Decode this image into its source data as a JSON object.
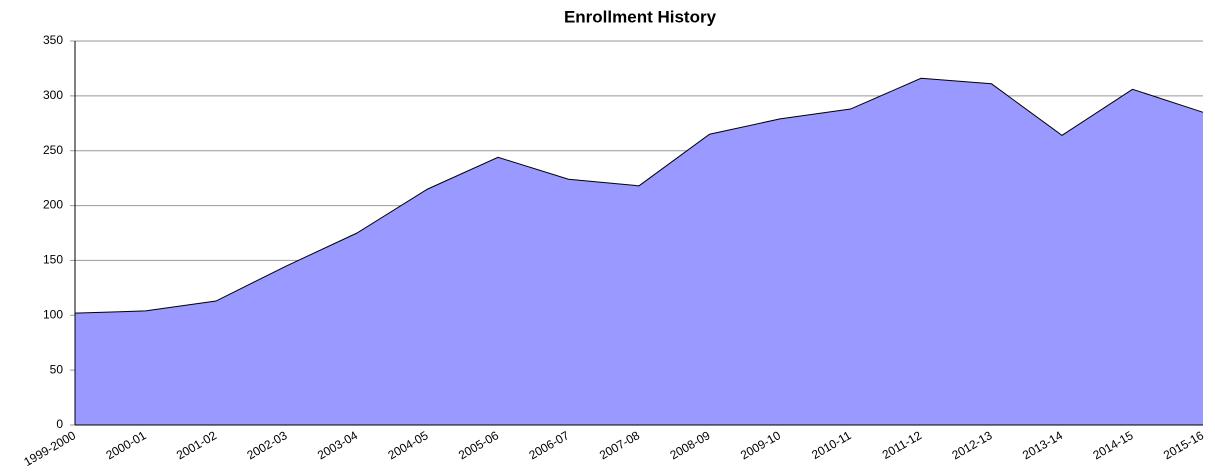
{
  "chart_data": {
    "type": "area",
    "title": "Enrollment History",
    "categories": [
      "1999-2000",
      "2000-01",
      "2001-02",
      "2002-03",
      "2003-04",
      "2004-05",
      "2005-06",
      "2006-07",
      "2007-08",
      "2008-09",
      "2009-10",
      "2010-11",
      "2011-12",
      "2012-13",
      "2013-14",
      "2014-15",
      "2015-16"
    ],
    "values": [
      102,
      104,
      113,
      145,
      175,
      215,
      244,
      224,
      218,
      265,
      279,
      288,
      316,
      311,
      264,
      306,
      285
    ],
    "color": "#9999ff",
    "ylim": [
      0,
      350
    ],
    "yticks": [
      0,
      50,
      100,
      150,
      200,
      250,
      300,
      350
    ],
    "grid": true
  }
}
